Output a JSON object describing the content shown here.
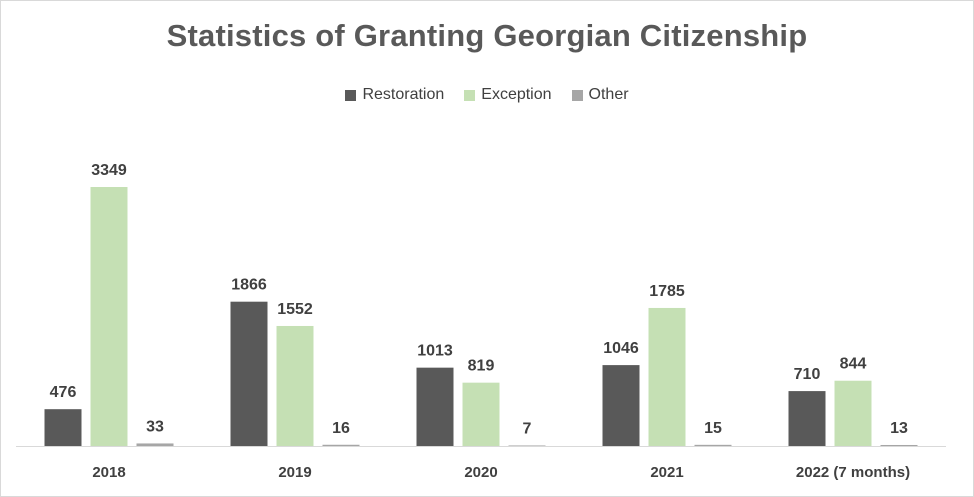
{
  "chart_data": {
    "type": "bar",
    "title": "Statistics of Granting Georgian Citizenship",
    "categories": [
      "2018",
      "2019",
      "2020",
      "2021",
      "2022 (7 months)"
    ],
    "series": [
      {
        "name": "Restoration",
        "color": "#595959",
        "values": [
          476,
          1866,
          1013,
          1046,
          710
        ]
      },
      {
        "name": "Exception",
        "color": "#c5e0b4",
        "values": [
          3349,
          1552,
          819,
          1785,
          844
        ]
      },
      {
        "name": "Other",
        "color": "#a6a6a6",
        "values": [
          33,
          16,
          7,
          15,
          13
        ]
      }
    ],
    "xlabel": "",
    "ylabel": "",
    "ylim": [
      0,
      3349
    ],
    "grid": false,
    "legend_position": "top-center",
    "data_labels": true
  }
}
